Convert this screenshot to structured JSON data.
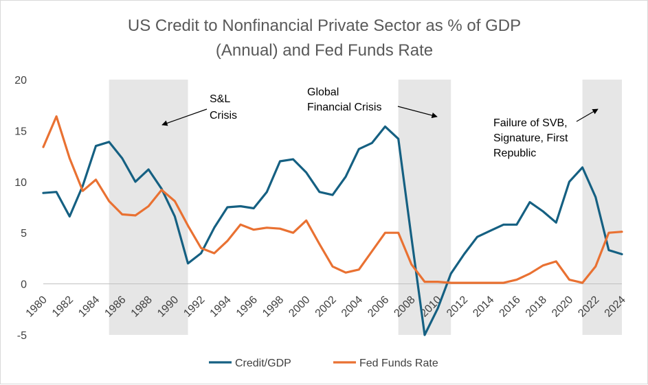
{
  "chart_data": {
    "type": "line",
    "title": [
      "US Credit to Nonfinancial Private Sector as % of GDP",
      "(Annual) and Fed Funds Rate"
    ],
    "xlabel": "",
    "ylabel": "",
    "xlim": [
      1980,
      2024
    ],
    "ylim": [
      -5,
      20
    ],
    "yticks": [
      -5,
      0,
      5,
      10,
      15,
      20
    ],
    "xticks": [
      1980,
      1982,
      1984,
      1986,
      1988,
      1990,
      1992,
      1994,
      1996,
      1998,
      2000,
      2002,
      2004,
      2006,
      2008,
      2010,
      2012,
      2014,
      2016,
      2018,
      2020,
      2022,
      2024
    ],
    "x": [
      1980,
      1981,
      1982,
      1983,
      1984,
      1985,
      1986,
      1987,
      1988,
      1989,
      1990,
      1991,
      1992,
      1993,
      1994,
      1995,
      1996,
      1997,
      1998,
      1999,
      2000,
      2001,
      2002,
      2003,
      2004,
      2005,
      2006,
      2007,
      2008,
      2009,
      2010,
      2011,
      2012,
      2013,
      2014,
      2015,
      2016,
      2017,
      2018,
      2019,
      2020,
      2021,
      2022,
      2023,
      2024
    ],
    "series": [
      {
        "name": "Credit/GDP",
        "color": "#156082",
        "values": [
          8.9,
          9.0,
          6.6,
          9.6,
          13.5,
          13.9,
          12.3,
          10.0,
          11.2,
          9.3,
          6.6,
          2.0,
          3.0,
          5.5,
          7.5,
          7.6,
          7.4,
          9.0,
          12.0,
          12.2,
          10.9,
          9.0,
          8.7,
          10.5,
          13.2,
          13.8,
          15.4,
          14.2,
          4.5,
          -5.0,
          -2.4,
          1.0,
          2.9,
          4.6,
          5.2,
          5.8,
          5.8,
          8.0,
          7.1,
          6.0,
          10.0,
          11.4,
          8.5,
          3.3,
          2.9
        ]
      },
      {
        "name": "Fed Funds Rate",
        "color": "#E97132",
        "values": [
          13.4,
          16.4,
          12.3,
          9.1,
          10.2,
          8.1,
          6.8,
          6.7,
          7.6,
          9.2,
          8.1,
          5.7,
          3.5,
          3.0,
          4.2,
          5.8,
          5.3,
          5.5,
          5.4,
          5.0,
          6.2,
          3.9,
          1.7,
          1.1,
          1.4,
          3.2,
          5.0,
          5.0,
          1.9,
          0.2,
          0.2,
          0.1,
          0.1,
          0.1,
          0.1,
          0.1,
          0.4,
          1.0,
          1.8,
          2.2,
          0.4,
          0.1,
          1.7,
          5.0,
          5.1
        ]
      }
    ],
    "recessions": [
      {
        "label": "S&L Crisis",
        "start": 1985.0,
        "end": 1991.0
      },
      {
        "label": "Global Financial Crisis",
        "start": 2007.0,
        "end": 2011.0
      },
      {
        "label": "Failure of SVB, Signature, First Republic",
        "start": 2021.0,
        "end": 2024.0
      }
    ],
    "annotations": [
      {
        "lines": [
          "S&L",
          "Crisis"
        ]
      },
      {
        "lines": [
          "Global",
          "Financial Crisis"
        ]
      },
      {
        "lines": [
          "Failure of SVB,",
          "Signature, First",
          "Republic"
        ]
      }
    ],
    "legend_position": "bottom",
    "grid": false
  },
  "colors": {
    "shade": "#e6e6e6",
    "axis": "#bfbfbf"
  }
}
